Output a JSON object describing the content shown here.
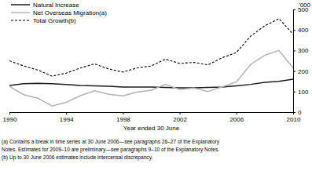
{
  "chart_data": {
    "type": "line",
    "x_label": "Year ended 30 June",
    "y_label": "'000",
    "x": [
      1990,
      1991,
      1992,
      1993,
      1994,
      1995,
      1996,
      1997,
      1998,
      1999,
      2000,
      2001,
      2002,
      2003,
      2004,
      2005,
      2006,
      2007,
      2008,
      2009,
      2010
    ],
    "series": [
      {
        "name": "Natural Increase",
        "color": "#1a1a1a",
        "line_style": "solid",
        "values": [
          130,
          138,
          140,
          138,
          135,
          130,
          128,
          126,
          122,
          122,
          122,
          120,
          118,
          118,
          120,
          122,
          128,
          135,
          145,
          150,
          160
        ]
      },
      {
        "name": "Net Overseas Migration(a)",
        "color": "#b3b3b3",
        "line_style": "solid",
        "values": [
          125,
          85,
          68,
          30,
          48,
          80,
          104,
          87,
          79,
          97,
          107,
          135,
          110,
          117,
          100,
          123,
          147,
          232,
          277,
          300,
          215
        ]
      },
      {
        "name": "Total Growth(b)",
        "color": "#000000",
        "line_style": "dashed",
        "values": [
          250,
          225,
          205,
          175,
          190,
          215,
          235,
          210,
          195,
          215,
          225,
          258,
          237,
          242,
          230,
          265,
          290,
          370,
          420,
          455,
          380
        ]
      }
    ],
    "xlim": [
      1990,
      2010
    ],
    "xticks": [
      1990,
      1994,
      1998,
      2002,
      2006,
      2010
    ],
    "ylim": [
      0,
      500
    ],
    "yticks": [
      0,
      100,
      200,
      300,
      400,
      500
    ],
    "grid": false,
    "legend": "upper left",
    "annotations": [
      "(a) Contains a break in time series at 30 June 2006—see paragraphs 26–27 of the Explanatory",
      "Notes. Estimates for 2009–10 are preliminary—see paragraphs 9–10 of the Explanatory Notes.",
      "(b) Up to 30 June 2006 estimates include intercensal discrepancy."
    ]
  }
}
